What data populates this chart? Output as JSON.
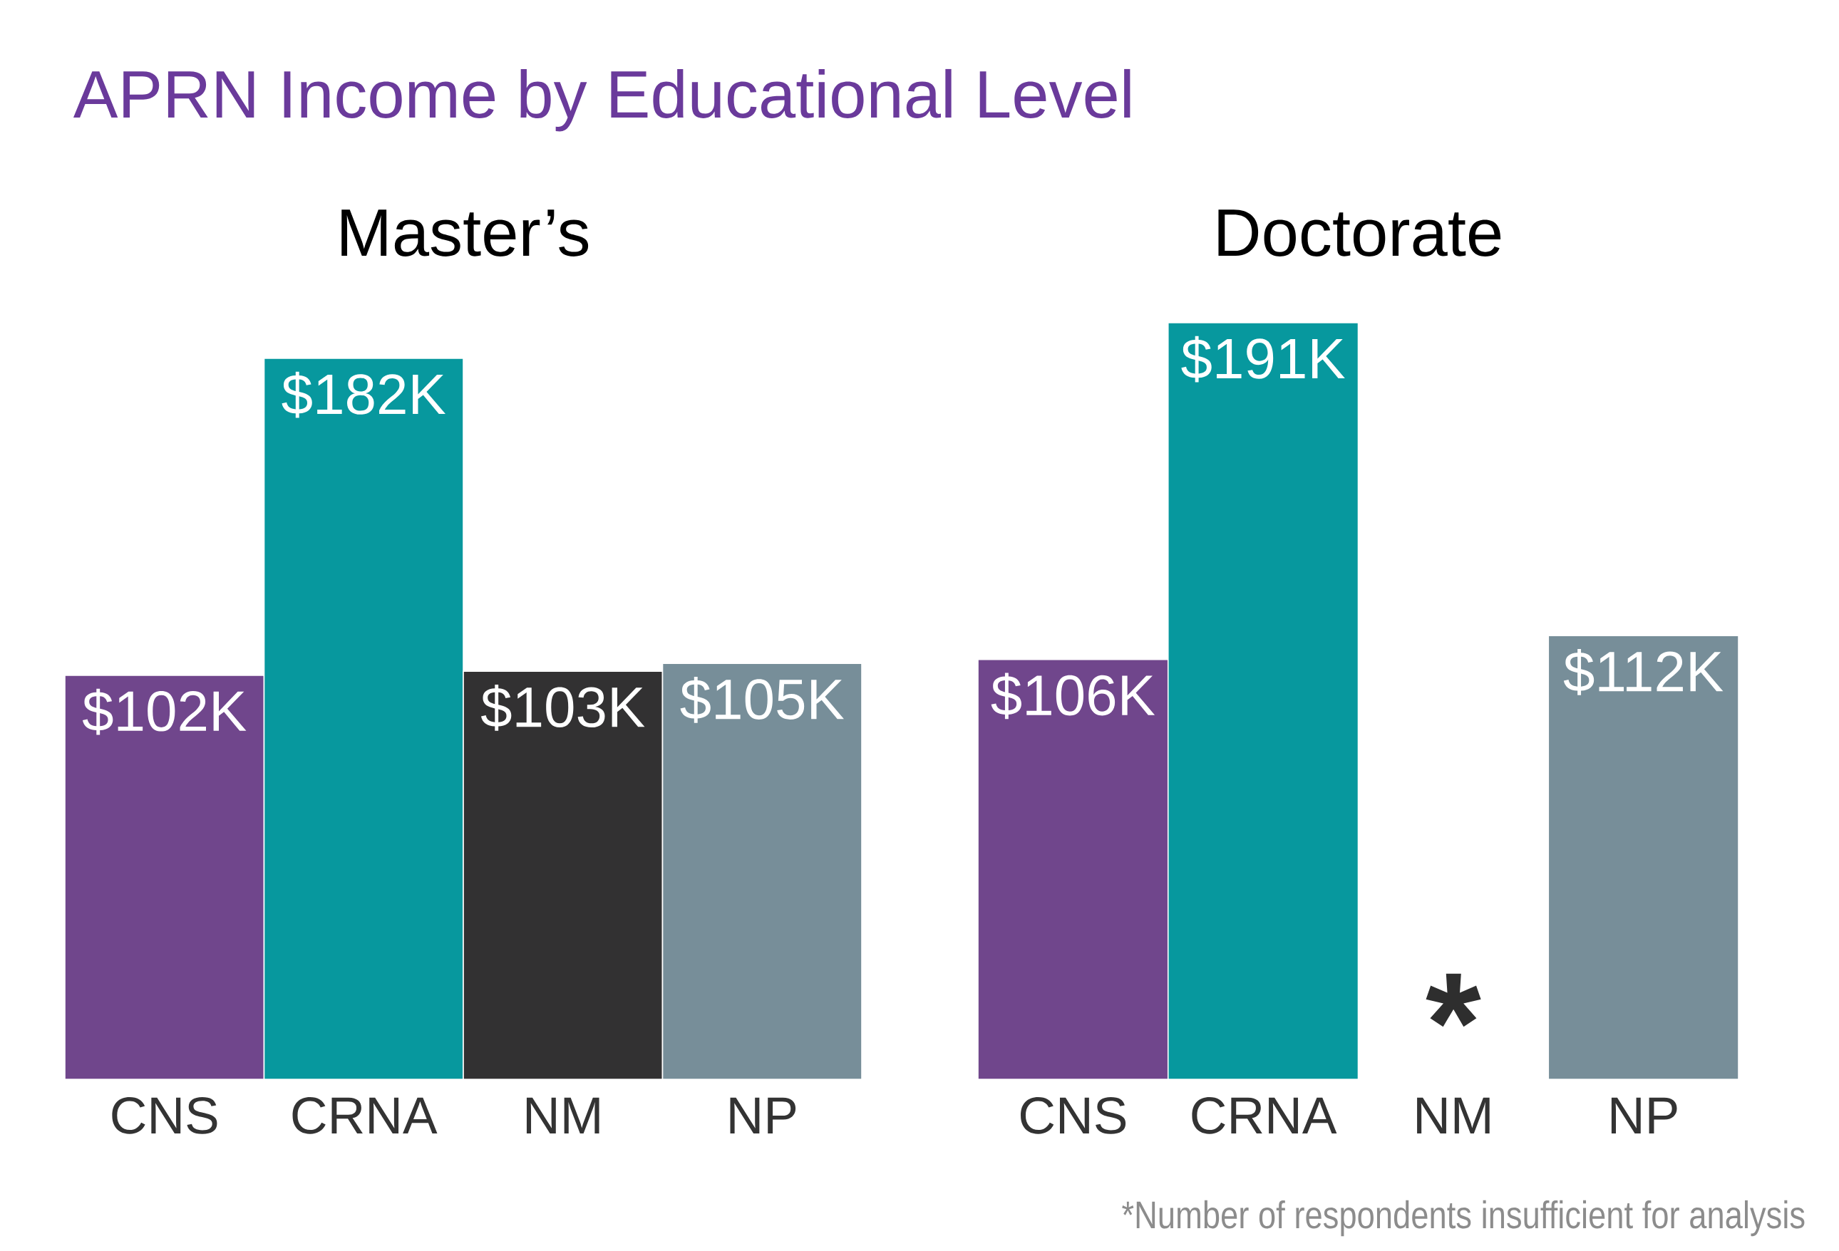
{
  "chart_data": [
    {
      "type": "bar",
      "title": "APRN Income by Educational Level",
      "subtitle": "Master’s",
      "categories": [
        "CNS",
        "CRNA",
        "NM",
        "NP"
      ],
      "values": [
        102,
        182,
        103,
        105
      ],
      "colors": [
        "#70468c",
        "#07989e",
        "#323132",
        "#778e99"
      ],
      "value_labels": [
        "$102K",
        "$182K",
        "$103K",
        "$105K"
      ],
      "tick_labels": "x"
    },
    {
      "type": "bar",
      "title": "Doctorate",
      "categories": [
        "CNS",
        "CRNA",
        "NM",
        "NP"
      ],
      "values": [
        106,
        191,
        null,
        112
      ],
      "colors": [
        "#70468c",
        "#07989e",
        null,
        "#778e99"
      ],
      "value_labels": [
        "$106K",
        "$191K",
        null,
        "$112K"
      ],
      "tick_labels": "x",
      "annotations": [
        "*",
        "*Number of respondents insufficient for analysis"
      ]
    }
  ]
}
